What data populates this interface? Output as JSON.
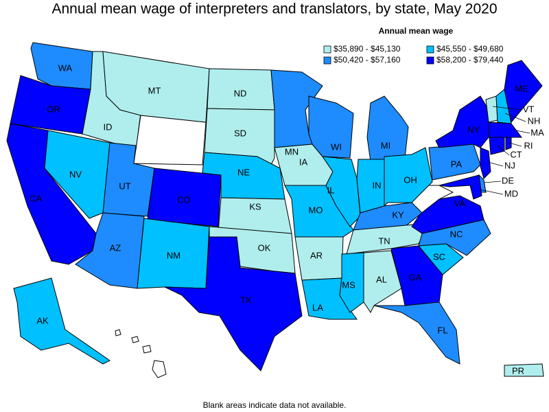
{
  "title": "Annual mean wage of interpreters and translators, by state, May 2020",
  "legend": {
    "title": "Annual mean wage",
    "items": [
      {
        "label": "$35,890 - $45,130",
        "color": "#b0eeee"
      },
      {
        "label": "$45,550 - $49,680",
        "color": "#00c0ff"
      },
      {
        "label": "$50,420 - $57,160",
        "color": "#1e8cff"
      },
      {
        "label": "$58,200 - $79,440",
        "color": "#0000ff"
      }
    ]
  },
  "states": [
    {
      "abbr": "WA",
      "class": 2
    },
    {
      "abbr": "OR",
      "class": 3
    },
    {
      "abbr": "CA",
      "class": 3
    },
    {
      "abbr": "NV",
      "class": 1
    },
    {
      "abbr": "ID",
      "class": 0
    },
    {
      "abbr": "MT",
      "class": 0
    },
    {
      "abbr": "UT",
      "class": 2
    },
    {
      "abbr": "CO",
      "class": 3
    },
    {
      "abbr": "AZ",
      "class": 2
    },
    {
      "abbr": "NM",
      "class": 1
    },
    {
      "abbr": "ND",
      "class": 0
    },
    {
      "abbr": "SD",
      "class": 0
    },
    {
      "abbr": "NE",
      "class": 1
    },
    {
      "abbr": "KS",
      "class": 0
    },
    {
      "abbr": "OK",
      "class": 0
    },
    {
      "abbr": "TX",
      "class": 3
    },
    {
      "abbr": "MN",
      "class": 2
    },
    {
      "abbr": "IA",
      "class": 0
    },
    {
      "abbr": "MO",
      "class": 1
    },
    {
      "abbr": "AR",
      "class": 0
    },
    {
      "abbr": "LA",
      "class": 1
    },
    {
      "abbr": "WI",
      "class": 2
    },
    {
      "abbr": "IL",
      "class": 1
    },
    {
      "abbr": "MI",
      "class": 2
    },
    {
      "abbr": "IN",
      "class": 1
    },
    {
      "abbr": "OH",
      "class": 1
    },
    {
      "abbr": "KY",
      "class": 2
    },
    {
      "abbr": "TN",
      "class": 0
    },
    {
      "abbr": "MS",
      "class": 1
    },
    {
      "abbr": "AL",
      "class": 0
    },
    {
      "abbr": "GA",
      "class": 3
    },
    {
      "abbr": "FL",
      "class": 2
    },
    {
      "abbr": "SC",
      "class": 1
    },
    {
      "abbr": "NC",
      "class": 2
    },
    {
      "abbr": "VA",
      "class": 3
    },
    {
      "abbr": "PA",
      "class": 2
    },
    {
      "abbr": "NY",
      "class": 3
    },
    {
      "abbr": "VT",
      "class": 0
    },
    {
      "abbr": "NH",
      "class": 1
    },
    {
      "abbr": "ME",
      "class": 3
    },
    {
      "abbr": "MA",
      "class": 3
    },
    {
      "abbr": "CT",
      "class": 3
    },
    {
      "abbr": "RI",
      "class": 3
    },
    {
      "abbr": "NJ",
      "class": 3
    },
    {
      "abbr": "DE",
      "class": 2
    },
    {
      "abbr": "MD",
      "class": 3
    },
    {
      "abbr": "AK",
      "class": 1
    },
    {
      "abbr": "PR",
      "class": 0
    }
  ],
  "footnote": "Blank areas indicate data not available."
}
